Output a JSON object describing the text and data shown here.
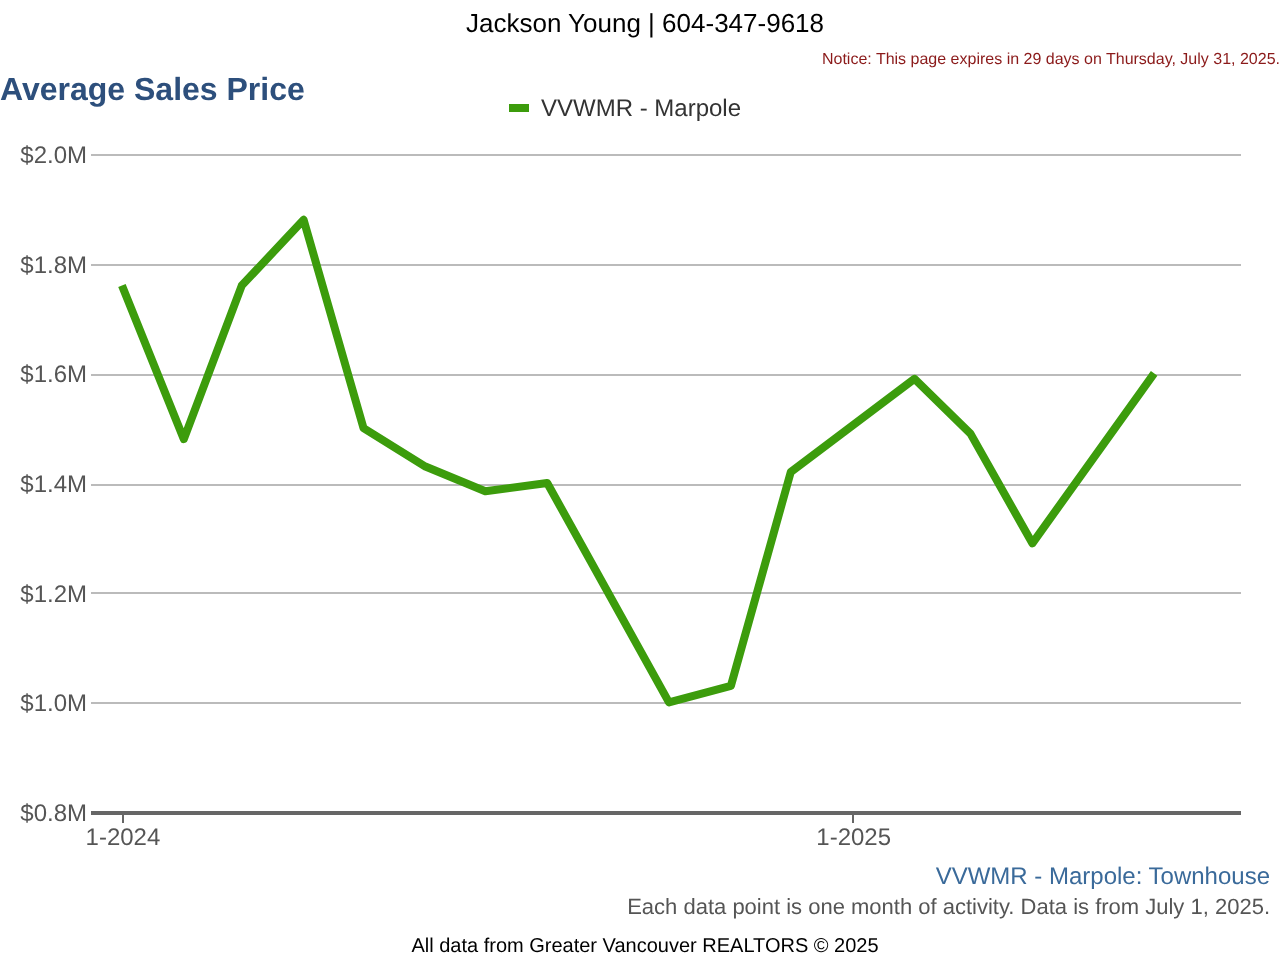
{
  "chart_data": {
    "type": "line",
    "title": "Average Sales Price",
    "x": [
      "2024-01",
      "2024-02",
      "2024-03",
      "2024-04",
      "2024-05",
      "2024-06",
      "2024-07",
      "2024-08",
      "2024-10",
      "2024-11",
      "2024-12",
      "2025-02",
      "2025-03",
      "2025-04",
      "2025-06"
    ],
    "series": [
      {
        "name": "VVWMR - Marpole",
        "color": "#3c9c0c",
        "values": [
          1.76,
          1.48,
          1.76,
          1.88,
          1.5,
          1.43,
          1.385,
          1.4,
          1.0,
          1.03,
          1.42,
          1.59,
          1.49,
          1.29,
          1.6
        ]
      }
    ],
    "xlim": [
      "2023-12-16",
      "2025-07-14"
    ],
    "xticks": [
      {
        "value": "2024-01-01",
        "label": "1-2024"
      },
      {
        "value": "2025-01-01",
        "label": "1-2025"
      }
    ],
    "ylim": [
      0.8,
      2.0
    ],
    "yticks": [
      {
        "value": 0.8,
        "label": "$0.8M"
      },
      {
        "value": 1.0,
        "label": "$1.0M"
      },
      {
        "value": 1.2,
        "label": "$1.2M"
      },
      {
        "value": 1.4,
        "label": "$1.4M"
      },
      {
        "value": 1.6,
        "label": "$1.6M"
      },
      {
        "value": 1.8,
        "label": "$1.8M"
      },
      {
        "value": 2.0,
        "label": "$2.0M"
      }
    ],
    "grid": "y",
    "legend": "top",
    "marker": "none",
    "line_style": "solid",
    "annotations": [
      "Jackson Young | 604-347-9618",
      "Notice: This page expires in 29 days on Thursday, July 31, 2025.",
      "VVWMR - Marpole: Townhouse",
      "Each data point is one month of activity. Data is from July 1, 2025.",
      "All data from Greater Vancouver REALTORS © 2025"
    ]
  }
}
